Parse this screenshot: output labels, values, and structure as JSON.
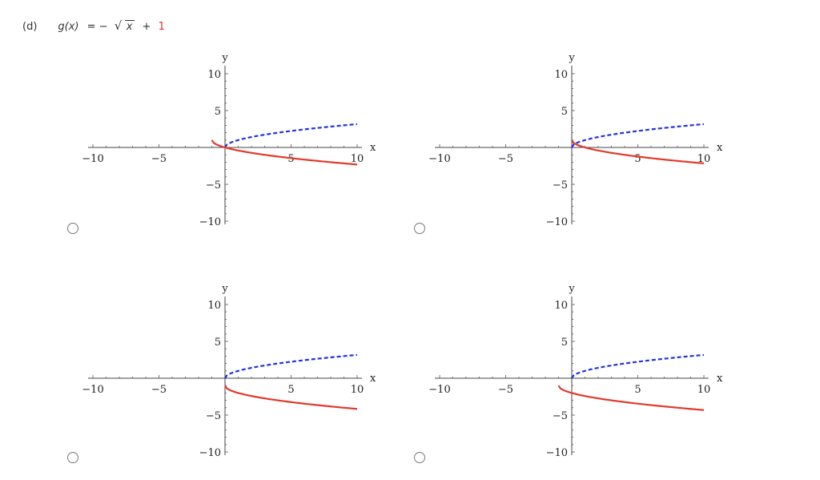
{
  "question": {
    "label": "(d)",
    "func_name": "g(x)",
    "equals": "= −",
    "radicand": "x",
    "plus": "+",
    "constant": "1"
  },
  "colors": {
    "reference": "#2233dd",
    "transformed": "#e3392c"
  },
  "chart_data": [
    {
      "type": "line",
      "xlabel": "x",
      "ylabel": "y",
      "xlim": [
        -10,
        10
      ],
      "ylim": [
        -10,
        10
      ],
      "xticks": [
        "-10",
        "-5",
        "5",
        "10"
      ],
      "yticks": [
        "10",
        "5",
        "-5",
        "-10"
      ],
      "series": [
        {
          "style": "dashed",
          "color": "#2233dd",
          "x": [
            0,
            1,
            4,
            9,
            10
          ],
          "y": [
            0,
            1,
            2,
            3,
            3.16
          ]
        },
        {
          "style": "solid",
          "color": "#e3392c",
          "x": [
            -1,
            0,
            3,
            8,
            10
          ],
          "y": [
            1,
            0,
            -1,
            -2,
            -2.32
          ]
        }
      ]
    },
    {
      "type": "line",
      "xlabel": "x",
      "ylabel": "y",
      "xlim": [
        -10,
        10
      ],
      "ylim": [
        -10,
        10
      ],
      "xticks": [
        "-10",
        "-5",
        "5",
        "10"
      ],
      "yticks": [
        "10",
        "5",
        "-5",
        "-10"
      ],
      "series": [
        {
          "style": "dashed",
          "color": "#2233dd",
          "x": [
            0,
            1,
            4,
            9,
            10
          ],
          "y": [
            0,
            1,
            2,
            3,
            3.16
          ]
        },
        {
          "style": "solid",
          "color": "#e3392c",
          "x": [
            0,
            1,
            4,
            9,
            10
          ],
          "y": [
            1,
            0,
            -1,
            -2,
            -2.16
          ]
        }
      ]
    },
    {
      "type": "line",
      "xlabel": "x",
      "ylabel": "y",
      "xlim": [
        -10,
        10
      ],
      "ylim": [
        -10,
        10
      ],
      "xticks": [
        "-10",
        "-5",
        "5",
        "10"
      ],
      "yticks": [
        "10",
        "5",
        "-5",
        "-10"
      ],
      "series": [
        {
          "style": "dashed",
          "color": "#2233dd",
          "x": [
            0,
            1,
            4,
            9,
            10
          ],
          "y": [
            0,
            1,
            2,
            3,
            3.16
          ]
        },
        {
          "style": "solid",
          "color": "#e3392c",
          "x": [
            0,
            1,
            4,
            9,
            10
          ],
          "y": [
            -1,
            -2,
            -3,
            -4,
            -4.16
          ]
        }
      ]
    },
    {
      "type": "line",
      "xlabel": "x",
      "ylabel": "y",
      "xlim": [
        -10,
        10
      ],
      "ylim": [
        -10,
        10
      ],
      "xticks": [
        "-10",
        "-5",
        "5",
        "10"
      ],
      "yticks": [
        "10",
        "5",
        "-5",
        "-10"
      ],
      "series": [
        {
          "style": "dashed",
          "color": "#2233dd",
          "x": [
            0,
            1,
            4,
            9,
            10
          ],
          "y": [
            0,
            1,
            2,
            3,
            3.16
          ]
        },
        {
          "style": "solid",
          "color": "#e3392c",
          "x": [
            -1,
            0,
            3,
            8,
            10
          ],
          "y": [
            -1,
            -2,
            -3,
            -4,
            -4.32
          ]
        }
      ]
    }
  ]
}
